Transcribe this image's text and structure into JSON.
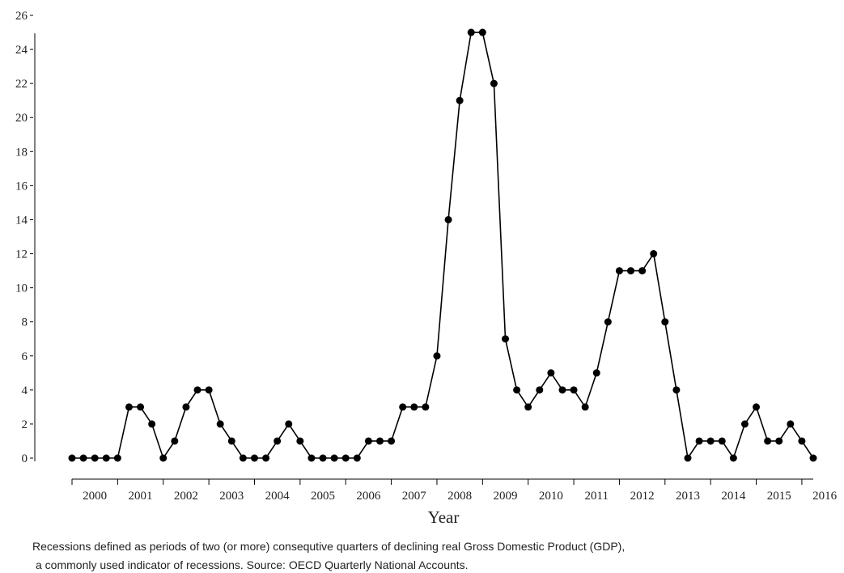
{
  "chart_data": {
    "type": "line",
    "x_label": "Year",
    "caption": [
      "Recessions defined as periods of two (or more) consequtive quarters of declining real Gross Domestic Product (GDP),",
      "a commonly used indicator of recessions. Source: OECD Quarterly National Accounts."
    ],
    "x": [
      2000,
      2000.25,
      2000.5,
      2000.75,
      2001,
      2001.25,
      2001.5,
      2001.75,
      2002,
      2002.25,
      2002.5,
      2002.75,
      2003,
      2003.25,
      2003.5,
      2003.75,
      2004,
      2004.25,
      2004.5,
      2004.75,
      2005,
      2005.25,
      2005.5,
      2005.75,
      2006,
      2006.25,
      2006.5,
      2006.75,
      2007,
      2007.25,
      2007.5,
      2007.75,
      2008,
      2008.25,
      2008.5,
      2008.75,
      2009,
      2009.25,
      2009.5,
      2009.75,
      2010,
      2010.25,
      2010.5,
      2010.75,
      2011,
      2011.25,
      2011.5,
      2011.75,
      2012,
      2012.25,
      2012.5,
      2012.75,
      2013,
      2013.25,
      2013.5,
      2013.75,
      2014,
      2014.25,
      2014.5,
      2014.75,
      2015,
      2015.25,
      2015.5,
      2015.75,
      2016,
      2016.25
    ],
    "series": [
      {
        "color": "#000000",
        "values": [
          0,
          0,
          0,
          0,
          0,
          3,
          3,
          2,
          0,
          1,
          3,
          4,
          4,
          2,
          1,
          0,
          0,
          0,
          1,
          2,
          1,
          0,
          0,
          0,
          0,
          0,
          1,
          1,
          1,
          3,
          3,
          3,
          6,
          14,
          21,
          25,
          25,
          22,
          7,
          4,
          3,
          4,
          5,
          4,
          4,
          3,
          5,
          8,
          11,
          11,
          11,
          12,
          8,
          4,
          0,
          1,
          1,
          1,
          0,
          2,
          3,
          1,
          1,
          2,
          1,
          0
        ]
      }
    ],
    "xlim": [
      2000,
      2016.25
    ],
    "xticks": [
      2000,
      2001,
      2002,
      2003,
      2004,
      2005,
      2006,
      2007,
      2008,
      2009,
      2010,
      2011,
      2012,
      2013,
      2014,
      2015,
      2016
    ],
    "ylim": [
      0,
      26
    ],
    "yticks": [
      0,
      2,
      4,
      6,
      8,
      10,
      12,
      14,
      16,
      18,
      20,
      22,
      24,
      26
    ]
  }
}
